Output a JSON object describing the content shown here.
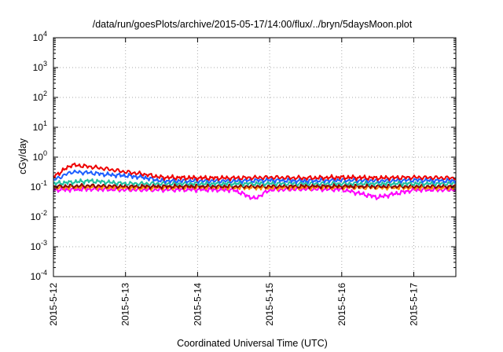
{
  "chart_data": {
    "type": "line",
    "title": "/data/run/goesPlots/archive/2015-05-17/14:00/flux/../bryn/5daysMoon.plot",
    "xlabel": "Coordinated Universal Time (UTC)",
    "ylabel": "cGy/day",
    "yscale": "log",
    "ylim": [
      0.0001,
      10000
    ],
    "y_ticks": [
      {
        "base": "10",
        "exp": "-4"
      },
      {
        "base": "10",
        "exp": "-3"
      },
      {
        "base": "10",
        "exp": "-2"
      },
      {
        "base": "10",
        "exp": "-1"
      },
      {
        "base": "10",
        "exp": "0"
      },
      {
        "base": "10",
        "exp": "1"
      },
      {
        "base": "10",
        "exp": "2"
      },
      {
        "base": "10",
        "exp": "3"
      },
      {
        "base": "10",
        "exp": "4"
      }
    ],
    "xlim": [
      "2015-05-12 00:00",
      "2015-05-17 14:00"
    ],
    "x_tick_labels": [
      "2015-5-12",
      "2015-5-13",
      "2015-5-14",
      "2015-5-15",
      "2015-5-16",
      "2015-5-17"
    ],
    "grid": true,
    "series": [
      {
        "color": "#ff00ff",
        "x": [
          "2015-05-12 00:00",
          "2015-05-12 12:00",
          "2015-05-13 00:00",
          "2015-05-13 12:00",
          "2015-05-14 00:00",
          "2015-05-14 12:00",
          "2015-05-14 19:00",
          "2015-05-15 00:00",
          "2015-05-15 12:00",
          "2015-05-16 00:00",
          "2015-05-16 12:00",
          "2015-05-17 00:00",
          "2015-05-17 14:00"
        ],
        "y": [
          0.08,
          0.085,
          0.08,
          0.08,
          0.082,
          0.08,
          0.04,
          0.08,
          0.085,
          0.082,
          0.045,
          0.08,
          0.08
        ]
      },
      {
        "color": "#ff8c00",
        "x": [
          "2015-05-12 00:00",
          "2015-05-12 12:00",
          "2015-05-13 00:00",
          "2015-05-13 12:00",
          "2015-05-14 00:00",
          "2015-05-14 12:00",
          "2015-05-15 00:00",
          "2015-05-15 12:00",
          "2015-05-16 00:00",
          "2015-05-16 12:00",
          "2015-05-17 00:00",
          "2015-05-17 14:00"
        ],
        "y": [
          0.095,
          0.1,
          0.095,
          0.095,
          0.097,
          0.095,
          0.095,
          0.097,
          0.097,
          0.095,
          0.095,
          0.095
        ]
      },
      {
        "color": "#8b0000",
        "x": [
          "2015-05-12 00:00",
          "2015-05-12 12:00",
          "2015-05-13 00:00",
          "2015-05-13 12:00",
          "2015-05-14 00:00",
          "2015-05-14 12:00",
          "2015-05-15 00:00",
          "2015-05-15 12:00",
          "2015-05-16 00:00",
          "2015-05-16 12:00",
          "2015-05-17 00:00",
          "2015-05-17 14:00"
        ],
        "y": [
          0.105,
          0.11,
          0.105,
          0.105,
          0.107,
          0.105,
          0.105,
          0.107,
          0.107,
          0.105,
          0.105,
          0.105
        ]
      },
      {
        "color": "#20c0a0",
        "x": [
          "2015-05-12 00:00",
          "2015-05-12 12:00",
          "2015-05-13 00:00",
          "2015-05-13 12:00",
          "2015-05-14 00:00",
          "2015-05-14 12:00",
          "2015-05-15 00:00",
          "2015-05-15 12:00",
          "2015-05-16 00:00",
          "2015-05-16 12:00",
          "2015-05-17 00:00",
          "2015-05-17 14:00"
        ],
        "y": [
          0.13,
          0.16,
          0.13,
          0.13,
          0.13,
          0.13,
          0.13,
          0.13,
          0.13,
          0.13,
          0.13,
          0.13
        ]
      },
      {
        "color": "#1e5fff",
        "x": [
          "2015-05-12 00:00",
          "2015-05-12 06:00",
          "2015-05-12 12:00",
          "2015-05-12 18:00",
          "2015-05-13 00:00",
          "2015-05-13 06:00",
          "2015-05-13 12:00",
          "2015-05-14 00:00",
          "2015-05-14 12:00",
          "2015-05-15 00:00",
          "2015-05-15 12:00",
          "2015-05-16 00:00",
          "2015-05-16 12:00",
          "2015-05-17 00:00",
          "2015-05-17 14:00"
        ],
        "y": [
          0.17,
          0.32,
          0.3,
          0.26,
          0.24,
          0.21,
          0.16,
          0.16,
          0.16,
          0.17,
          0.16,
          0.17,
          0.16,
          0.17,
          0.16
        ]
      },
      {
        "color": "#ee0000",
        "x": [
          "2015-05-12 00:00",
          "2015-05-12 06:00",
          "2015-05-12 12:00",
          "2015-05-12 18:00",
          "2015-05-13 00:00",
          "2015-05-13 06:00",
          "2015-05-13 12:00",
          "2015-05-14 00:00",
          "2015-05-14 12:00",
          "2015-05-15 00:00",
          "2015-05-15 12:00",
          "2015-05-16 00:00",
          "2015-05-16 12:00",
          "2015-05-17 00:00",
          "2015-05-17 14:00"
        ],
        "y": [
          0.22,
          0.55,
          0.48,
          0.4,
          0.32,
          0.27,
          0.21,
          0.2,
          0.2,
          0.21,
          0.2,
          0.21,
          0.2,
          0.21,
          0.2
        ]
      }
    ]
  }
}
